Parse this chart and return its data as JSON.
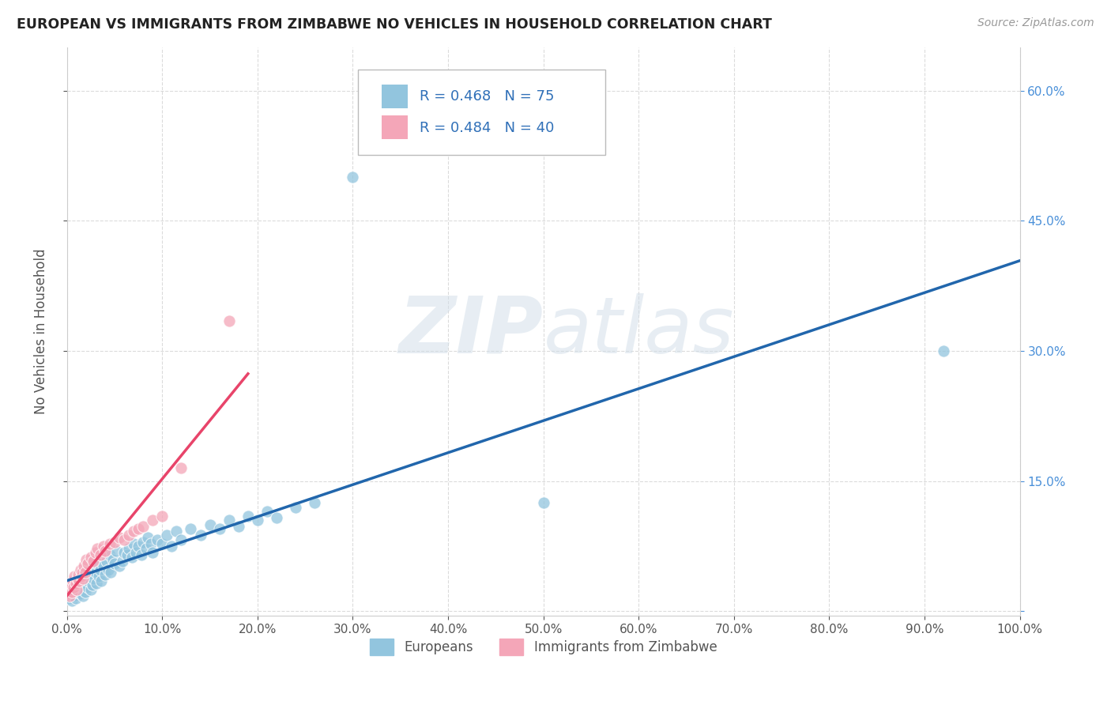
{
  "title": "EUROPEAN VS IMMIGRANTS FROM ZIMBABWE NO VEHICLES IN HOUSEHOLD CORRELATION CHART",
  "source": "Source: ZipAtlas.com",
  "ylabel": "No Vehicles in Household",
  "xlim": [
    0,
    1.0
  ],
  "ylim": [
    -0.005,
    0.65
  ],
  "xticks": [
    0.0,
    0.1,
    0.2,
    0.3,
    0.4,
    0.5,
    0.6,
    0.7,
    0.8,
    0.9,
    1.0
  ],
  "xticklabels": [
    "0.0%",
    "10.0%",
    "20.0%",
    "30.0%",
    "40.0%",
    "50.0%",
    "60.0%",
    "70.0%",
    "80.0%",
    "90.0%",
    "100.0%"
  ],
  "yticks": [
    0.0,
    0.15,
    0.3,
    0.45,
    0.6
  ],
  "yticklabels_right": [
    "",
    "15.0%",
    "30.0%",
    "45.0%",
    "60.0%"
  ],
  "legend_R1": "R = 0.468",
  "legend_N1": "N = 75",
  "legend_R2": "R = 0.484",
  "legend_N2": "N = 40",
  "europeans_color": "#92c5de",
  "zimbabwe_color": "#f4a6b8",
  "trendline_european_color": "#2166ac",
  "trendline_zimbabwe_color": "#e8446a",
  "background_color": "#ffffff",
  "grid_color": "#cccccc",
  "europeans_x": [
    0.001,
    0.002,
    0.003,
    0.004,
    0.005,
    0.006,
    0.007,
    0.008,
    0.009,
    0.01,
    0.012,
    0.014,
    0.015,
    0.016,
    0.017,
    0.018,
    0.019,
    0.02,
    0.022,
    0.023,
    0.025,
    0.026,
    0.027,
    0.028,
    0.03,
    0.031,
    0.032,
    0.033,
    0.035,
    0.036,
    0.038,
    0.04,
    0.042,
    0.043,
    0.045,
    0.046,
    0.048,
    0.05,
    0.052,
    0.055,
    0.058,
    0.06,
    0.063,
    0.065,
    0.068,
    0.07,
    0.072,
    0.075,
    0.078,
    0.08,
    0.083,
    0.085,
    0.088,
    0.09,
    0.095,
    0.1,
    0.105,
    0.11,
    0.115,
    0.12,
    0.13,
    0.14,
    0.15,
    0.16,
    0.17,
    0.18,
    0.19,
    0.2,
    0.21,
    0.22,
    0.24,
    0.26,
    0.3,
    0.5,
    0.92
  ],
  "europeans_y": [
    0.02,
    0.015,
    0.018,
    0.022,
    0.012,
    0.025,
    0.018,
    0.03,
    0.015,
    0.022,
    0.028,
    0.02,
    0.035,
    0.025,
    0.018,
    0.03,
    0.022,
    0.04,
    0.028,
    0.035,
    0.025,
    0.042,
    0.03,
    0.038,
    0.045,
    0.032,
    0.055,
    0.04,
    0.048,
    0.035,
    0.052,
    0.042,
    0.058,
    0.048,
    0.065,
    0.045,
    0.06,
    0.055,
    0.07,
    0.052,
    0.058,
    0.068,
    0.065,
    0.072,
    0.062,
    0.078,
    0.068,
    0.075,
    0.065,
    0.08,
    0.072,
    0.085,
    0.078,
    0.068,
    0.082,
    0.078,
    0.088,
    0.075,
    0.092,
    0.082,
    0.095,
    0.088,
    0.1,
    0.095,
    0.105,
    0.098,
    0.11,
    0.105,
    0.115,
    0.108,
    0.12,
    0.125,
    0.5,
    0.125,
    0.3
  ],
  "zimbabwe_x": [
    0.001,
    0.002,
    0.003,
    0.004,
    0.005,
    0.006,
    0.007,
    0.008,
    0.009,
    0.01,
    0.011,
    0.012,
    0.013,
    0.014,
    0.015,
    0.016,
    0.017,
    0.018,
    0.019,
    0.02,
    0.022,
    0.025,
    0.028,
    0.03,
    0.032,
    0.035,
    0.038,
    0.04,
    0.045,
    0.05,
    0.055,
    0.06,
    0.065,
    0.07,
    0.075,
    0.08,
    0.09,
    0.1,
    0.12,
    0.17
  ],
  "zimbabwe_y": [
    0.02,
    0.025,
    0.018,
    0.03,
    0.022,
    0.035,
    0.028,
    0.04,
    0.032,
    0.025,
    0.038,
    0.042,
    0.035,
    0.048,
    0.04,
    0.045,
    0.038,
    0.052,
    0.045,
    0.06,
    0.055,
    0.062,
    0.058,
    0.068,
    0.072,
    0.065,
    0.075,
    0.07,
    0.078,
    0.08,
    0.085,
    0.082,
    0.088,
    0.092,
    0.095,
    0.098,
    0.105,
    0.11,
    0.165,
    0.335
  ]
}
